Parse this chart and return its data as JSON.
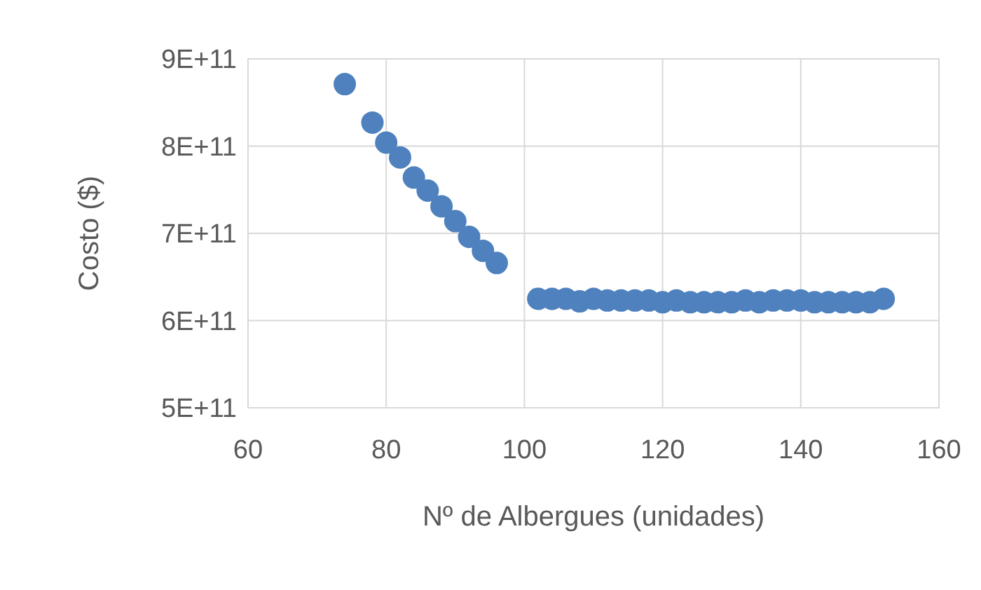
{
  "chart_data": {
    "type": "scatter",
    "xlabel": "Nº de Albergues (unidades)",
    "ylabel": "Costo ($)",
    "x": [
      74,
      78,
      80,
      82,
      84,
      86,
      88,
      90,
      92,
      94,
      96,
      102,
      104,
      106,
      108,
      110,
      112,
      114,
      116,
      118,
      120,
      122,
      124,
      126,
      128,
      130,
      132,
      134,
      136,
      138,
      140,
      142,
      144,
      146,
      148,
      150,
      152
    ],
    "series": [
      {
        "color": "#4e81bd",
        "values": [
          871000000000,
          827000000000,
          804000000000,
          787000000000,
          764000000000,
          749000000000,
          731000000000,
          714000000000,
          696000000000,
          680000000000,
          666000000000,
          625000000000,
          625000000000,
          625000000000,
          622000000000,
          625000000000,
          623000000000,
          623000000000,
          623000000000,
          623000000000,
          621000000000,
          623000000000,
          621000000000,
          621000000000,
          621000000000,
          621000000000,
          623000000000,
          621000000000,
          623000000000,
          623000000000,
          623000000000,
          621000000000,
          621000000000,
          621000000000,
          621000000000,
          621000000000,
          625000000000
        ]
      }
    ],
    "xlim": [
      60,
      160
    ],
    "xticks": [
      60,
      80,
      100,
      120,
      140,
      160
    ],
    "ylim": [
      500000000000,
      900000000000
    ],
    "yticks": [
      {
        "value": 500000000000,
        "label": "5E+11"
      },
      {
        "value": 600000000000,
        "label": "6E+11"
      },
      {
        "value": 700000000000,
        "label": "7E+11"
      },
      {
        "value": 800000000000,
        "label": "8E+11"
      },
      {
        "value": 900000000000,
        "label": "9E+11"
      }
    ],
    "grid": true,
    "marker": "circle"
  }
}
